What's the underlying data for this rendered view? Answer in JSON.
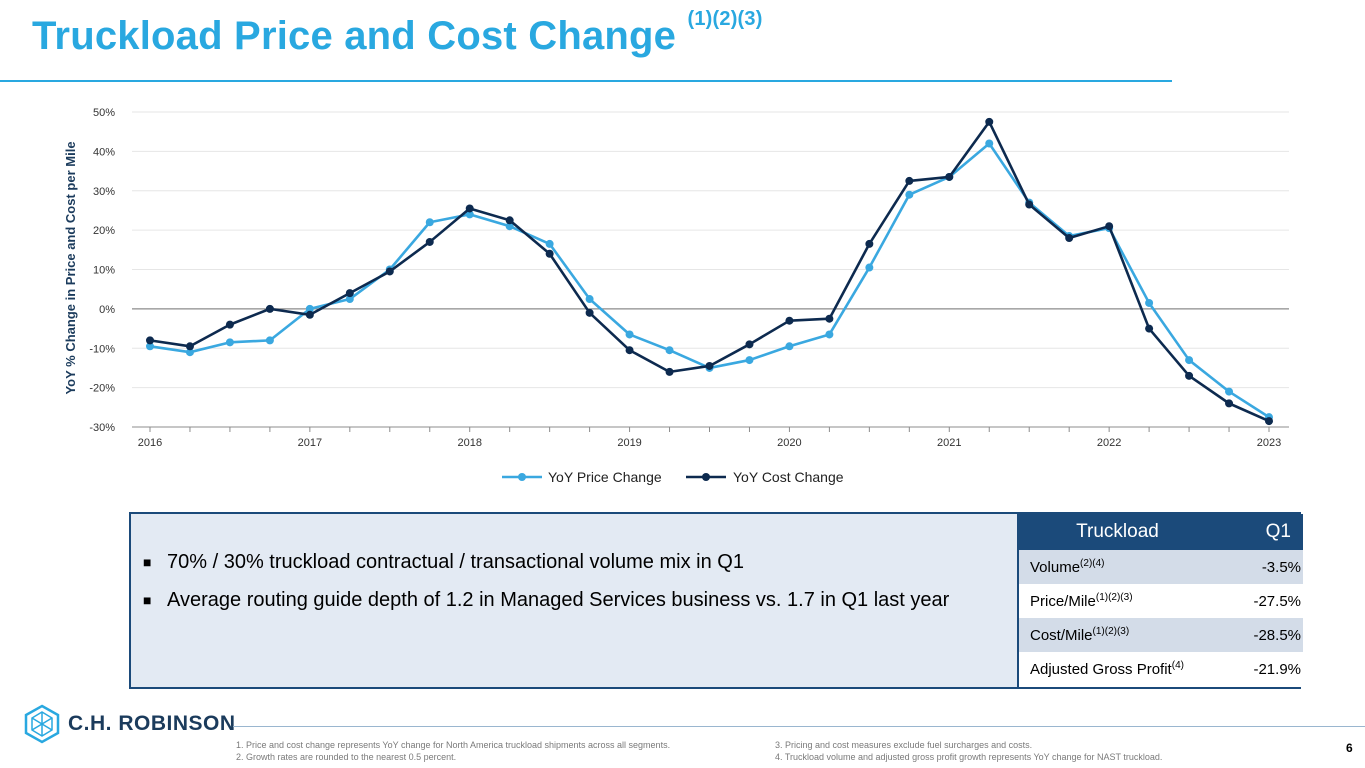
{
  "title": "Truckload Price and Cost Change",
  "title_sup": "(1)(2)(3)",
  "chart_data": {
    "type": "line",
    "ylabel": "YoY % Change in Price and Cost per Mile",
    "ylim": [
      -30,
      50
    ],
    "yticks": [
      -30,
      -20,
      -10,
      0,
      10,
      20,
      30,
      40,
      50
    ],
    "ytick_labels": [
      "-30%",
      "-20%",
      "-10%",
      "0%",
      "10%",
      "20%",
      "30%",
      "40%",
      "50%"
    ],
    "xtick_labels": [
      "2016",
      "2017",
      "2018",
      "2019",
      "2020",
      "2021",
      "2022",
      "2023"
    ],
    "points_per_year": 4,
    "series": [
      {
        "name": "YoY Price Change",
        "color": "#3aa8e0",
        "values": [
          -9.5,
          -11,
          -8.5,
          -8,
          0,
          2.5,
          10,
          22,
          24,
          21,
          16.5,
          2.5,
          -6.5,
          -10.5,
          -15,
          -13,
          -9.5,
          -6.5,
          10.5,
          29,
          33.5,
          42,
          27,
          18.5,
          20.5,
          1.5,
          -13,
          -21,
          -27.5
        ]
      },
      {
        "name": "YoY Cost Change",
        "color": "#0d2a4f",
        "values": [
          -8,
          -9.5,
          -4,
          0,
          -1.5,
          4,
          9.5,
          17,
          25.5,
          22.5,
          14,
          -1,
          -10.5,
          -16,
          -14.5,
          -9,
          -3,
          -2.5,
          16.5,
          32.5,
          33.5,
          47.5,
          26.5,
          18,
          21,
          -5,
          -17,
          -24,
          -28.5
        ]
      }
    ]
  },
  "bullets": [
    "70% / 30% truckload contractual / transactional volume mix in Q1",
    "Average routing guide depth of 1.2 in Managed Services business vs. 1.7 in Q1 last year"
  ],
  "bullet_symbol": "■",
  "table": {
    "headers": [
      "Truckload",
      "Q1"
    ],
    "rows": [
      {
        "label": "Volume",
        "sup": "(2)(4)",
        "value": "-3.5%"
      },
      {
        "label": "Price/Mile",
        "sup": "(1)(2)(3)",
        "value": "-27.5%"
      },
      {
        "label": "Cost/Mile",
        "sup": "(1)(2)(3)",
        "value": "-28.5%"
      },
      {
        "label": "Adjusted Gross Profit",
        "sup": "(4)",
        "value": "-21.9%"
      }
    ]
  },
  "logo_text": "C.H. ROBINSON",
  "footnotes": {
    "f1": "1.  Price and cost change represents YoY change for North America truckload shipments across all segments.",
    "f2": "2.  Growth rates are rounded to the nearest 0.5 percent.",
    "f3": "3.  Pricing and cost measures exclude fuel surcharges and costs.",
    "f4": "4.  Truckload volume and adjusted gross profit growth represents YoY change for NAST truckload."
  },
  "page_number": "6"
}
